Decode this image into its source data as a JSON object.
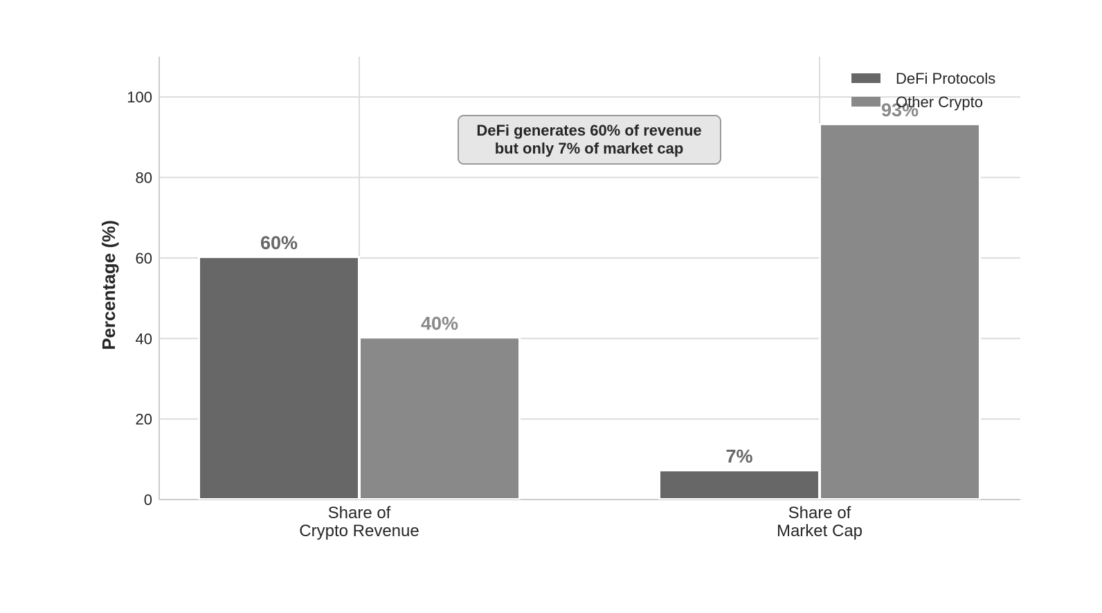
{
  "chart_data": {
    "type": "bar",
    "categories": [
      "Share of\nCrypto Revenue",
      "Share of\nMarket Cap"
    ],
    "series": [
      {
        "name": "DeFi Protocols",
        "values": [
          60,
          7
        ],
        "color": "#666766",
        "labels": [
          "60%",
          "7%"
        ]
      },
      {
        "name": "Other Crypto",
        "values": [
          40,
          93
        ],
        "color": "#888988",
        "labels": [
          "40%",
          "93%"
        ]
      }
    ],
    "ylabel": "Percentage (%)",
    "xlabel": "",
    "ylim": [
      0,
      110
    ],
    "yticks": [
      0,
      20,
      40,
      60,
      80,
      100
    ],
    "grid": true,
    "legend_position": "top-right",
    "annotation": "DeFi generates 60% of revenue\nbut only 7% of market cap"
  }
}
